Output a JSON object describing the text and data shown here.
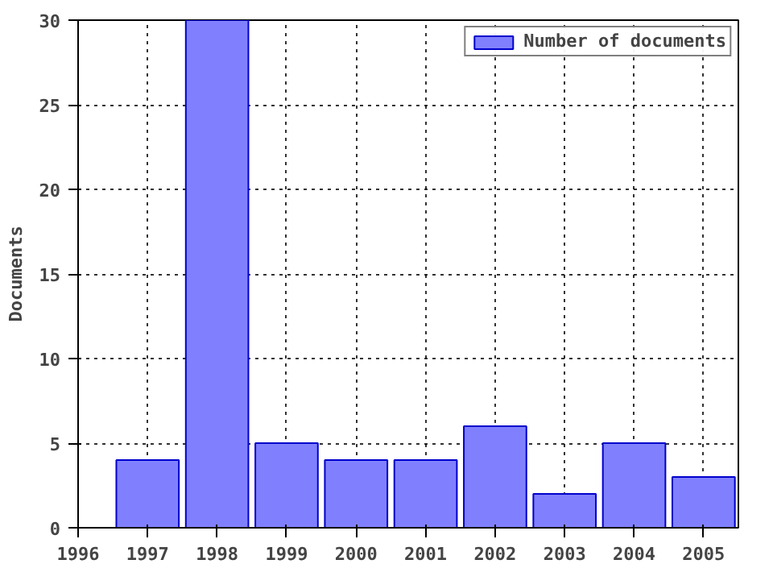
{
  "chart_data": {
    "type": "bar",
    "ylabel": "Documents",
    "x": [
      1997,
      1998,
      1999,
      2000,
      2001,
      2002,
      2003,
      2004,
      2005
    ],
    "series": [
      {
        "name": "Number of documents",
        "color": "#8080ff",
        "values": [
          4,
          30,
          5,
          4,
          4,
          6,
          2,
          5,
          3
        ]
      }
    ],
    "xlim": [
      1996,
      2005.5
    ],
    "xticks": [
      1996,
      1997,
      1998,
      1999,
      2000,
      2001,
      2002,
      2003,
      2004,
      2005
    ],
    "ylim": [
      0,
      30
    ],
    "yticks": [
      0,
      5,
      10,
      15,
      20,
      25,
      30
    ],
    "grid": true,
    "legend": "top right"
  }
}
